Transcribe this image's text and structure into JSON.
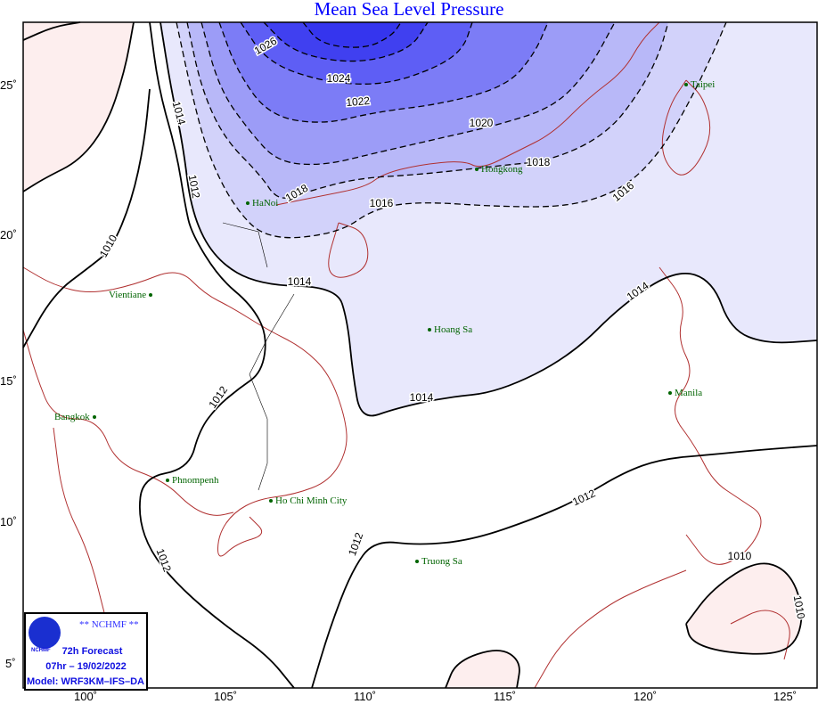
{
  "title": "Mean Sea Level Pressure",
  "axes": {
    "lon_ticks": [
      "100˚",
      "105˚",
      "110˚",
      "115˚",
      "120˚",
      "125˚"
    ],
    "lat_ticks": [
      "25˚",
      "20˚",
      "15˚",
      "10˚",
      "5˚"
    ]
  },
  "contour_labels": [
    "1026",
    "1024",
    "1022",
    "1020",
    "1018",
    "1018",
    "1016",
    "1016",
    "1014",
    "1014",
    "1014",
    "1014",
    "1012",
    "1012",
    "1012",
    "1012",
    "1012",
    "1010",
    "1010",
    "1010"
  ],
  "fill_colors": {
    "above_1026": "#4040f0",
    "1024_1026": "#5e5ef5",
    "1022_1024": "#7c7cf6",
    "1020_1022": "#9c9cf7",
    "1018_1020": "#b8b8f8",
    "1016_1018": "#d2d2fa",
    "1014_1016": "#e8e8fc",
    "below_1010": "#fdeeee",
    "coastline": "#b03030"
  },
  "cities": [
    "Taipei",
    "Hongkong",
    "HaNoi",
    "Vientiane",
    "Hoang Sa",
    "Manila",
    "Bangkok",
    "Phnompenh",
    "Ho Chi Minh City",
    "Truong Sa"
  ],
  "legend": {
    "org": "** NCHMF **",
    "logo_text": "NCHMF",
    "forecast": "72h Forecast",
    "time": "07hr – 19/02/2022",
    "model": "Model: WRF3KM–IFS–DA"
  }
}
